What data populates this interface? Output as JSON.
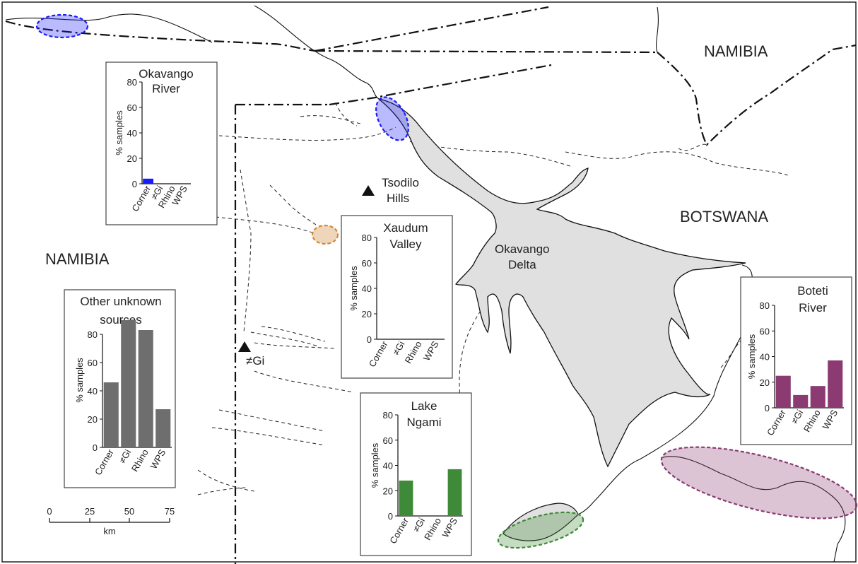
{
  "labels": {
    "namibia_north": "NAMIBIA",
    "namibia_west": "NAMIBIA",
    "botswana": "BOTSWANA",
    "tsodilo_line1": "Tsodilo",
    "tsodilo_line2": "Hills",
    "gi": "≠Gi",
    "delta_line1": "Okavango",
    "delta_line2": "Delta"
  },
  "colors": {
    "okavango": "#1a1aff",
    "xaudum": "#d08a3a",
    "ngami": "#3f8a38",
    "boteti": "#8b3a72",
    "other": "#6e6e6e",
    "delta_fill": "#e0e0e0"
  },
  "scale_bar": {
    "ticks": [
      "0",
      "25",
      "50",
      "75"
    ],
    "unit": "km"
  },
  "chart_data": [
    {
      "id": "okavango",
      "type": "bar",
      "title_lines": [
        "Okavango",
        "River"
      ],
      "ylabel": "% samples",
      "ylim": [
        0,
        80
      ],
      "yticks": [
        "0",
        "20",
        "40",
        "60",
        "80"
      ],
      "categories": [
        "Corner",
        "≠Gi",
        "Rhino",
        "WPS"
      ],
      "values": [
        4,
        0,
        0,
        0
      ]
    },
    {
      "id": "xaudum",
      "type": "bar",
      "title_lines": [
        "Xaudum",
        "Valley"
      ],
      "ylabel": "% samples",
      "ylim": [
        0,
        80
      ],
      "yticks": [
        "0",
        "20",
        "40",
        "60",
        "80"
      ],
      "categories": [
        "Corner",
        "≠Gi",
        "Rhino",
        "WPS"
      ],
      "values": [
        0,
        0,
        0,
        0
      ]
    },
    {
      "id": "other",
      "type": "bar",
      "title_lines": [
        "Other unknown",
        "sources"
      ],
      "ylabel": "% samples",
      "ylim": [
        0,
        95
      ],
      "yticks": [
        "0",
        "20",
        "40",
        "60",
        "80"
      ],
      "categories": [
        "Corner",
        "≠Gi",
        "Rhino",
        "WPS"
      ],
      "values": [
        46,
        90,
        83,
        27
      ]
    },
    {
      "id": "ngami",
      "type": "bar",
      "title_lines": [
        "Lake",
        "Ngami"
      ],
      "ylabel": "% samples",
      "ylim": [
        0,
        80
      ],
      "yticks": [
        "0",
        "20",
        "40",
        "60",
        "80"
      ],
      "categories": [
        "Corner",
        "≠Gi",
        "Rhino",
        "WPS"
      ],
      "values": [
        28,
        0,
        0,
        37
      ]
    },
    {
      "id": "boteti",
      "type": "bar",
      "title_lines": [
        "Boteti",
        "River"
      ],
      "ylabel": "% samples",
      "ylim": [
        0,
        80
      ],
      "yticks": [
        "0",
        "20",
        "40",
        "60",
        "80"
      ],
      "categories": [
        "Corner",
        "≠Gi",
        "Rhino",
        "WPS"
      ],
      "values": [
        25,
        10,
        17,
        37
      ]
    }
  ]
}
